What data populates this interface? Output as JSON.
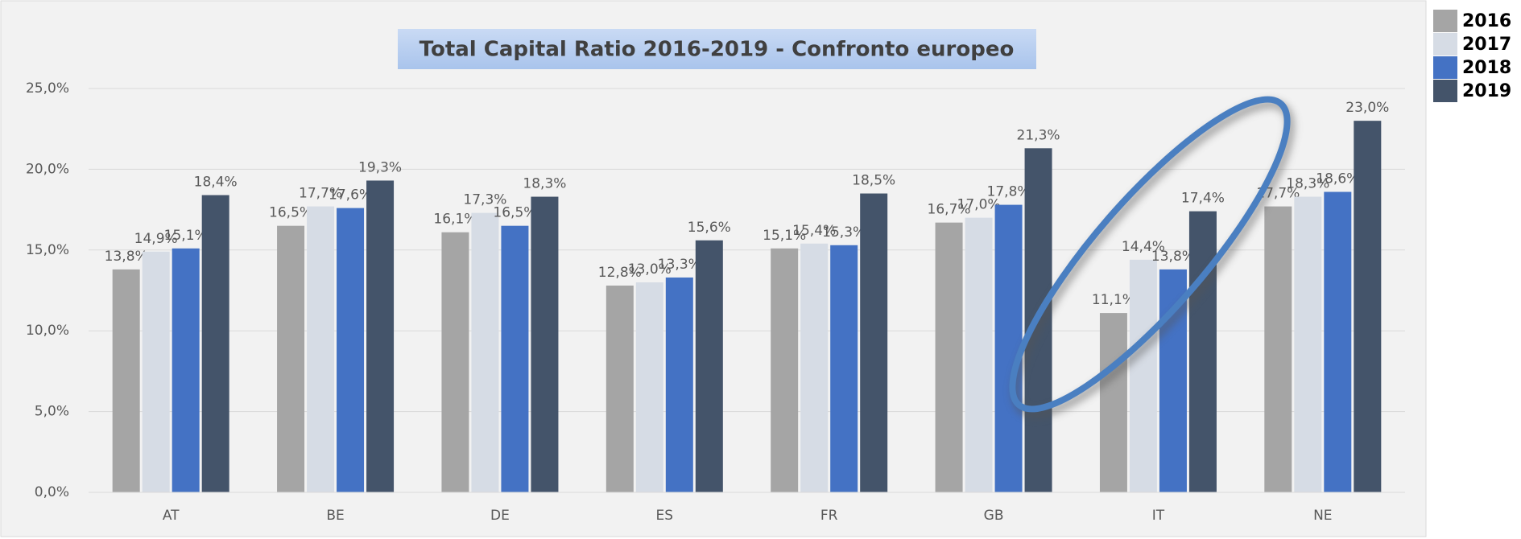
{
  "chart_data": {
    "type": "bar",
    "title": "Total Capital Ratio 2016-2019 - Confronto europeo",
    "categories": [
      "AT",
      "BE",
      "DE",
      "ES",
      "FR",
      "GB",
      "IT",
      "NE"
    ],
    "series": [
      {
        "name": "2016",
        "color": "#a5a5a5",
        "values": [
          13.8,
          16.5,
          16.1,
          12.8,
          15.1,
          16.7,
          11.1,
          17.7
        ],
        "value_labels": [
          "13,8%",
          "16,5%",
          "16,1%",
          "12,8%",
          "15,1%",
          "16,7%",
          "11,1%",
          "17,7%"
        ]
      },
      {
        "name": "2017",
        "color": "#d6dce5",
        "values": [
          14.9,
          17.7,
          17.3,
          13.0,
          15.4,
          17.0,
          14.4,
          18.3
        ],
        "value_labels": [
          "14,9%",
          "17,7%",
          "17,3%",
          "13,0%",
          "15,4%",
          "17,0%",
          "14,4%",
          "18,3%"
        ]
      },
      {
        "name": "2018",
        "color": "#4472c4",
        "values": [
          15.1,
          17.6,
          16.5,
          13.3,
          15.3,
          17.8,
          13.8,
          18.6
        ],
        "value_labels": [
          "15,1%",
          "17,6%",
          "16,5%",
          "13,3%",
          "15,3%",
          "17,8%",
          "13,8%",
          "18,6%"
        ]
      },
      {
        "name": "2019",
        "color": "#44546a",
        "values": [
          18.4,
          19.3,
          18.3,
          15.6,
          18.5,
          21.3,
          17.4,
          23.0
        ],
        "value_labels": [
          "18,4%",
          "19,3%",
          "18,3%",
          "15,6%",
          "18,5%",
          "21,3%",
          "17,4%",
          "23,0%"
        ]
      }
    ],
    "ylim": [
      0,
      25
    ],
    "yticks": [
      {
        "value": 0,
        "label": "0,0%"
      },
      {
        "value": 5,
        "label": "5,0%"
      },
      {
        "value": 10,
        "label": "10,0%"
      },
      {
        "value": 15,
        "label": "15,0%"
      },
      {
        "value": 20,
        "label": "20,0%"
      },
      {
        "value": 25,
        "label": "25,0%"
      }
    ],
    "grid": true,
    "legend": "right"
  }
}
